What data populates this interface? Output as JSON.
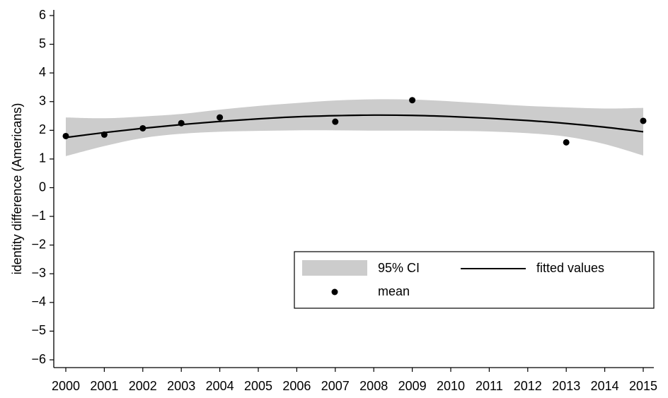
{
  "chart_data": {
    "type": "scatter",
    "title": "",
    "xlabel": "",
    "ylabel": "identity difference (Americans)",
    "xlim": [
      2000,
      2015
    ],
    "ylim": [
      -6,
      6
    ],
    "xticks": [
      2000,
      2001,
      2002,
      2003,
      2004,
      2005,
      2006,
      2007,
      2008,
      2009,
      2010,
      2011,
      2012,
      2013,
      2014,
      2015
    ],
    "yticks": [
      6,
      5,
      4,
      3,
      2,
      1,
      0,
      -1,
      -2,
      -3,
      -4,
      -5,
      -6
    ],
    "ytick_labels": [
      "6",
      "5",
      "4",
      "3",
      "2",
      "1",
      "0",
      "−1",
      "−2",
      "−3",
      "−4",
      "−5",
      "−6"
    ],
    "grid": false,
    "legend_position": "lower-right",
    "series": [
      {
        "name": "mean",
        "kind": "points",
        "color": "#000000",
        "x": [
          2000,
          2001,
          2002,
          2003,
          2004,
          2007,
          2009,
          2013,
          2015
        ],
        "y": [
          1.8,
          1.85,
          2.07,
          2.25,
          2.45,
          2.3,
          3.05,
          1.58,
          2.33
        ]
      },
      {
        "name": "fitted values",
        "kind": "line",
        "color": "#000000",
        "x": [
          2000,
          2001,
          2002,
          2003,
          2004,
          2005,
          2006,
          2007,
          2008,
          2009,
          2010,
          2011,
          2012,
          2013,
          2014,
          2015
        ],
        "y": [
          1.75,
          1.92,
          2.07,
          2.2,
          2.31,
          2.4,
          2.47,
          2.51,
          2.53,
          2.52,
          2.48,
          2.42,
          2.34,
          2.24,
          2.11,
          1.95
        ]
      },
      {
        "name": "95% CI",
        "kind": "band",
        "color": "#cccccc",
        "x": [
          2000,
          2001,
          2002,
          2003,
          2004,
          2005,
          2006,
          2007,
          2008,
          2009,
          2010,
          2011,
          2012,
          2013,
          2014,
          2015
        ],
        "lower": [
          1.1,
          1.45,
          1.73,
          1.88,
          1.95,
          1.98,
          2.0,
          2.0,
          1.99,
          1.99,
          1.98,
          1.96,
          1.9,
          1.78,
          1.52,
          1.12
        ],
        "upper": [
          2.45,
          2.42,
          2.48,
          2.57,
          2.72,
          2.85,
          2.95,
          3.04,
          3.08,
          3.07,
          3.01,
          2.93,
          2.85,
          2.8,
          2.76,
          2.78
        ]
      }
    ],
    "legend": {
      "items": [
        {
          "label": "95% CI",
          "symbol": "band"
        },
        {
          "label": "fitted values",
          "symbol": "line"
        },
        {
          "label": "mean",
          "symbol": "point"
        }
      ]
    }
  }
}
